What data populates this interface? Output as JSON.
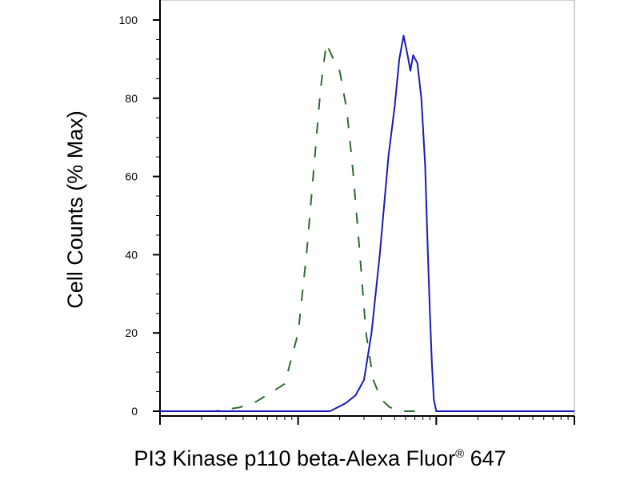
{
  "chart_data": {
    "type": "line",
    "xlabel": "PI3 Kinase p110 beta-Alexa Fluor",
    "xlabel_mark": "®",
    "xlabel_suffix": " 647",
    "ylabel": "Cell Counts (% Max)",
    "x_scale": "log",
    "xlim": [
      100,
      100000
    ],
    "ylim": [
      0,
      100
    ],
    "yticks": [
      "0",
      "20",
      "40",
      "60",
      "80",
      "100"
    ],
    "grid": false,
    "series": [
      {
        "style": "dashed",
        "color": "#2e6b2e",
        "x": [
          100,
          250,
          380,
          500,
          650,
          800,
          1000,
          1150,
          1300,
          1450,
          1600,
          1800,
          2000,
          2250,
          2500,
          2800,
          3100,
          3500,
          4000,
          4600,
          5500,
          7000
        ],
        "y": [
          0,
          0,
          1,
          2.5,
          5,
          7,
          20,
          40,
          62,
          82,
          94,
          90,
          87,
          77,
          61,
          40,
          20,
          8,
          3,
          1,
          0,
          0
        ]
      },
      {
        "style": "solid",
        "color": "#1a1ab8",
        "x": [
          100,
          1000,
          1700,
          2200,
          2600,
          3000,
          3400,
          3900,
          4500,
          5000,
          5400,
          5800,
          6200,
          6500,
          6800,
          7300,
          7800,
          8300,
          8700,
          9000,
          9300,
          9600,
          10000,
          12000,
          100000
        ],
        "y": [
          0,
          0,
          0,
          2,
          4,
          8,
          20,
          40,
          65,
          78,
          90,
          96,
          91,
          87,
          91,
          89,
          80,
          63,
          40,
          25,
          12,
          3,
          0,
          0,
          0
        ]
      }
    ]
  }
}
